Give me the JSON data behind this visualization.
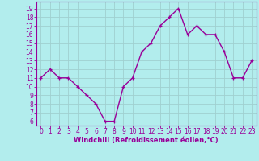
{
  "x": [
    0,
    1,
    2,
    3,
    4,
    5,
    6,
    7,
    8,
    9,
    10,
    11,
    12,
    13,
    14,
    15,
    16,
    17,
    18,
    19,
    20,
    21,
    22,
    23
  ],
  "y": [
    11,
    12,
    11,
    11,
    10,
    9,
    8,
    6,
    6,
    10,
    11,
    14,
    15,
    17,
    18,
    19,
    16,
    17,
    16,
    16,
    14,
    11,
    11,
    13
  ],
  "line_color": "#990099",
  "marker_color": "#990099",
  "bg_color": "#b2eded",
  "grid_color": "#a0d0d0",
  "spine_color": "#990099",
  "axis_label_color": "#990099",
  "tick_label_color": "#990099",
  "xlabel": "Windchill (Refroidissement éolien,°C)",
  "ylim": [
    5.5,
    19.8
  ],
  "xlim": [
    -0.5,
    23.5
  ],
  "yticks": [
    6,
    7,
    8,
    9,
    10,
    11,
    12,
    13,
    14,
    15,
    16,
    17,
    18,
    19
  ],
  "xticks": [
    0,
    1,
    2,
    3,
    4,
    5,
    6,
    7,
    8,
    9,
    10,
    11,
    12,
    13,
    14,
    15,
    16,
    17,
    18,
    19,
    20,
    21,
    22,
    23
  ],
  "xlabel_fontsize": 6.0,
  "tick_fontsize": 5.5,
  "linewidth": 1.0,
  "markersize": 3.5
}
